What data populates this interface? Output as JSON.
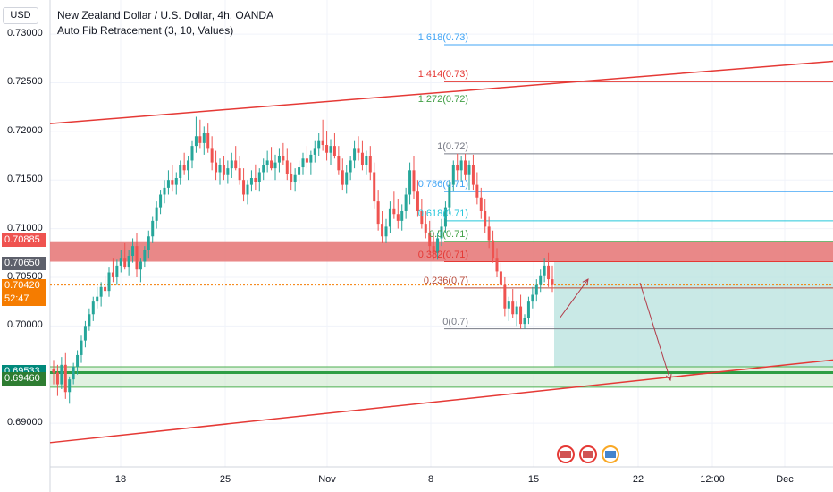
{
  "header": {
    "currency": "USD",
    "title": "New Zealand Dollar / U.S. Dollar, 4h, OANDA",
    "indicator": "Auto Fib Retracement (3, 10, Values)"
  },
  "colors": {
    "up": "#26a69a",
    "down": "#ef5350",
    "trend": "#e53935",
    "supply_zone": "#e57373",
    "demand_zone": "#c8e6c9",
    "target_zone": "#b2dfdb",
    "grid": "#f0f3fa"
  },
  "chart_data": {
    "type": "candlestick",
    "title": "New Zealand Dollar / U.S. Dollar, 4h, OANDA",
    "ylim": [
      0.6855,
      0.7335
    ],
    "y_ticks": [
      "0.73000",
      "0.72500",
      "0.72000",
      "0.71500",
      "0.71000",
      "0.70500",
      "0.70000",
      "0.69000"
    ],
    "x_ticks": [
      "18",
      "25",
      "Nov",
      "8",
      "15",
      "22",
      "12:00",
      "Dec"
    ],
    "price_tags": [
      {
        "label": "0.70885",
        "value": 0.70885,
        "color": "#ef5350"
      },
      {
        "label": "0.70650",
        "value": 0.7065,
        "color": "#5d606b"
      },
      {
        "label": "0.70420",
        "value": 0.7042,
        "color": "#f57c00"
      },
      {
        "label": "52:47",
        "value": 0.7028,
        "color": "#f57c00"
      },
      {
        "label": "0.69533",
        "value": 0.69533,
        "color": "#00897b"
      },
      {
        "label": "0.69460",
        "value": 0.6946,
        "color": "#2e7d32"
      }
    ],
    "current_price": 0.7042,
    "fib_levels": [
      {
        "label": "1.618(0.73)",
        "value": 0.7289,
        "color": "#42a5f5"
      },
      {
        "label": "1.414(0.73)",
        "value": 0.7251,
        "color": "#e53935"
      },
      {
        "label": "1.272(0.72)",
        "value": 0.7226,
        "color": "#43a047"
      },
      {
        "label": "1(0.72)",
        "value": 0.7177,
        "color": "#787b86"
      },
      {
        "label": "0.786(0.71)",
        "value": 0.7138,
        "color": "#42a5f5"
      },
      {
        "label": "0.618(0.71)",
        "value": 0.7108,
        "color": "#26c6da"
      },
      {
        "label": "0.5(0.71)",
        "value": 0.7087,
        "color": "#43a047"
      },
      {
        "label": "0.382(0.71)",
        "value": 0.7066,
        "color": "#e53935"
      },
      {
        "label": "0.236(0.7)",
        "value": 0.7039,
        "color": "#b84a3a"
      },
      {
        "label": "0(0.7)",
        "value": 0.6997,
        "color": "#787b86"
      }
    ],
    "zones": [
      {
        "name": "supply",
        "from": 0.7066,
        "to": 0.7087
      },
      {
        "name": "demand",
        "from": 0.6937,
        "to": 0.6958
      },
      {
        "name": "target",
        "from": 0.6958,
        "to": 0.7066
      }
    ],
    "trendlines": [
      {
        "from": [
          0,
          0.7208
        ],
        "to": [
          1,
          0.7272
        ]
      },
      {
        "from": [
          0,
          0.688
        ],
        "to": [
          1,
          0.6965
        ]
      }
    ],
    "candles_ohlc": [
      [
        0.6956,
        0.6965,
        0.694,
        0.6952
      ],
      [
        0.6952,
        0.696,
        0.6928,
        0.694
      ],
      [
        0.694,
        0.6968,
        0.6935,
        0.696
      ],
      [
        0.696,
        0.6972,
        0.6925,
        0.6932
      ],
      [
        0.6932,
        0.6948,
        0.692,
        0.6945
      ],
      [
        0.6945,
        0.6962,
        0.694,
        0.6958
      ],
      [
        0.6958,
        0.6975,
        0.695,
        0.697
      ],
      [
        0.697,
        0.699,
        0.6962,
        0.6985
      ],
      [
        0.6985,
        0.7005,
        0.6978,
        0.7
      ],
      [
        0.7,
        0.7018,
        0.6995,
        0.7012
      ],
      [
        0.7012,
        0.703,
        0.7005,
        0.7025
      ],
      [
        0.7025,
        0.704,
        0.7018,
        0.703
      ],
      [
        0.703,
        0.7045,
        0.702,
        0.704
      ],
      [
        0.704,
        0.7052,
        0.7032,
        0.7036
      ],
      [
        0.7036,
        0.706,
        0.703,
        0.7055
      ],
      [
        0.7055,
        0.707,
        0.7045,
        0.705
      ],
      [
        0.705,
        0.7068,
        0.7042,
        0.7062
      ],
      [
        0.7062,
        0.7078,
        0.7055,
        0.707
      ],
      [
        0.707,
        0.7085,
        0.7058,
        0.706
      ],
      [
        0.706,
        0.7078,
        0.7052,
        0.7072
      ],
      [
        0.7072,
        0.709,
        0.7065,
        0.7082
      ],
      [
        0.7082,
        0.7095,
        0.705,
        0.7058
      ],
      [
        0.7058,
        0.707,
        0.7045,
        0.7066
      ],
      [
        0.7066,
        0.7082,
        0.706,
        0.7078
      ],
      [
        0.7078,
        0.7098,
        0.707,
        0.7092
      ],
      [
        0.7092,
        0.7112,
        0.7085,
        0.7108
      ],
      [
        0.7108,
        0.7128,
        0.71,
        0.7122
      ],
      [
        0.7122,
        0.714,
        0.7115,
        0.7135
      ],
      [
        0.7135,
        0.715,
        0.7126,
        0.7142
      ],
      [
        0.7142,
        0.716,
        0.7135,
        0.715
      ],
      [
        0.715,
        0.7165,
        0.7138,
        0.7145
      ],
      [
        0.7145,
        0.7158,
        0.7135,
        0.7152
      ],
      [
        0.7152,
        0.717,
        0.7145,
        0.7165
      ],
      [
        0.7165,
        0.7178,
        0.7155,
        0.716
      ],
      [
        0.716,
        0.7175,
        0.715,
        0.717
      ],
      [
        0.717,
        0.719,
        0.7162,
        0.7185
      ],
      [
        0.7185,
        0.7215,
        0.7178,
        0.7195
      ],
      [
        0.7195,
        0.7212,
        0.7182,
        0.7188
      ],
      [
        0.7188,
        0.7205,
        0.7176,
        0.7198
      ],
      [
        0.7198,
        0.7208,
        0.7178,
        0.7182
      ],
      [
        0.7182,
        0.7195,
        0.716,
        0.7168
      ],
      [
        0.7168,
        0.718,
        0.715,
        0.7158
      ],
      [
        0.7158,
        0.7172,
        0.7145,
        0.7165
      ],
      [
        0.7165,
        0.7175,
        0.715,
        0.7155
      ],
      [
        0.7155,
        0.717,
        0.7146,
        0.7162
      ],
      [
        0.7162,
        0.7178,
        0.7152,
        0.717
      ],
      [
        0.717,
        0.7185,
        0.716,
        0.7162
      ],
      [
        0.7162,
        0.7175,
        0.7145,
        0.715
      ],
      [
        0.715,
        0.7162,
        0.7128,
        0.7135
      ],
      [
        0.7135,
        0.715,
        0.7125,
        0.7145
      ],
      [
        0.7145,
        0.716,
        0.7138,
        0.7152
      ],
      [
        0.7152,
        0.7166,
        0.714,
        0.7148
      ],
      [
        0.7148,
        0.7162,
        0.7138,
        0.7158
      ],
      [
        0.7158,
        0.7172,
        0.715,
        0.7165
      ],
      [
        0.7165,
        0.718,
        0.7158,
        0.717
      ],
      [
        0.717,
        0.7184,
        0.716,
        0.7162
      ],
      [
        0.7162,
        0.7176,
        0.715,
        0.7168
      ],
      [
        0.7168,
        0.7182,
        0.7158,
        0.7175
      ],
      [
        0.7175,
        0.7188,
        0.7165,
        0.717
      ],
      [
        0.717,
        0.7182,
        0.715,
        0.7156
      ],
      [
        0.7156,
        0.7168,
        0.714,
        0.7148
      ],
      [
        0.7148,
        0.7162,
        0.7138,
        0.7155
      ],
      [
        0.7155,
        0.717,
        0.7146,
        0.7163
      ],
      [
        0.7163,
        0.7178,
        0.7155,
        0.7172
      ],
      [
        0.7172,
        0.7185,
        0.7162,
        0.7168
      ],
      [
        0.7168,
        0.718,
        0.7155,
        0.7176
      ],
      [
        0.7176,
        0.719,
        0.7168,
        0.7182
      ],
      [
        0.7182,
        0.7198,
        0.7175,
        0.719
      ],
      [
        0.719,
        0.7212,
        0.718,
        0.7186
      ],
      [
        0.7186,
        0.72,
        0.717,
        0.7178
      ],
      [
        0.7178,
        0.7192,
        0.7165,
        0.7185
      ],
      [
        0.7185,
        0.7198,
        0.7172,
        0.7175
      ],
      [
        0.7175,
        0.7185,
        0.7155,
        0.716
      ],
      [
        0.716,
        0.7172,
        0.714,
        0.7145
      ],
      [
        0.7145,
        0.7165,
        0.7136,
        0.7158
      ],
      [
        0.7158,
        0.7175,
        0.715,
        0.717
      ],
      [
        0.717,
        0.719,
        0.7162,
        0.7182
      ],
      [
        0.7182,
        0.7195,
        0.717,
        0.7178
      ],
      [
        0.7178,
        0.719,
        0.716,
        0.7165
      ],
      [
        0.7165,
        0.718,
        0.7155,
        0.7175
      ],
      [
        0.7175,
        0.7185,
        0.715,
        0.7158
      ],
      [
        0.7158,
        0.7168,
        0.712,
        0.7128
      ],
      [
        0.7128,
        0.714,
        0.7098,
        0.7105
      ],
      [
        0.7105,
        0.7118,
        0.7085,
        0.7092
      ],
      [
        0.7092,
        0.711,
        0.7085,
        0.7102
      ],
      [
        0.7102,
        0.7128,
        0.7095,
        0.712
      ],
      [
        0.712,
        0.7138,
        0.711,
        0.7115
      ],
      [
        0.7115,
        0.713,
        0.71,
        0.7108
      ],
      [
        0.7108,
        0.7125,
        0.7098,
        0.7118
      ],
      [
        0.7118,
        0.7142,
        0.711,
        0.7135
      ],
      [
        0.7135,
        0.7168,
        0.7125,
        0.716
      ],
      [
        0.716,
        0.7175,
        0.713,
        0.7138
      ],
      [
        0.7138,
        0.715,
        0.7112,
        0.7118
      ],
      [
        0.7118,
        0.713,
        0.71,
        0.7105
      ],
      [
        0.7105,
        0.7118,
        0.709,
        0.7096
      ],
      [
        0.7096,
        0.7108,
        0.7075,
        0.7082
      ],
      [
        0.7082,
        0.7095,
        0.7068,
        0.7075
      ],
      [
        0.7075,
        0.7095,
        0.7068,
        0.709
      ],
      [
        0.709,
        0.711,
        0.7082,
        0.7102
      ],
      [
        0.7102,
        0.7128,
        0.7095,
        0.7122
      ],
      [
        0.7122,
        0.715,
        0.7115,
        0.7145
      ],
      [
        0.7145,
        0.717,
        0.7138,
        0.7165
      ],
      [
        0.7165,
        0.7177,
        0.715,
        0.716
      ],
      [
        0.716,
        0.7175,
        0.7148,
        0.717
      ],
      [
        0.717,
        0.7177,
        0.715,
        0.7155
      ],
      [
        0.7155,
        0.717,
        0.714,
        0.7165
      ],
      [
        0.7165,
        0.7176,
        0.714,
        0.7145
      ],
      [
        0.7145,
        0.7158,
        0.7125,
        0.7132
      ],
      [
        0.7132,
        0.7142,
        0.711,
        0.7118
      ],
      [
        0.7118,
        0.713,
        0.7095,
        0.7102
      ],
      [
        0.7102,
        0.7112,
        0.708,
        0.7088
      ],
      [
        0.7088,
        0.7098,
        0.7065,
        0.707
      ],
      [
        0.707,
        0.708,
        0.705,
        0.7056
      ],
      [
        0.7056,
        0.7065,
        0.7035,
        0.7042
      ],
      [
        0.7042,
        0.705,
        0.701,
        0.7018
      ],
      [
        0.7018,
        0.703,
        0.7005,
        0.7025
      ],
      [
        0.7025,
        0.7038,
        0.7008,
        0.7012
      ],
      [
        0.7012,
        0.7025,
        0.7,
        0.702
      ],
      [
        0.702,
        0.7032,
        0.6997,
        0.7002
      ],
      [
        0.7002,
        0.7012,
        0.6997,
        0.7008
      ],
      [
        0.7008,
        0.703,
        0.7002,
        0.7025
      ],
      [
        0.7025,
        0.704,
        0.7018,
        0.7032
      ],
      [
        0.7032,
        0.7048,
        0.7025,
        0.7042
      ],
      [
        0.7042,
        0.7058,
        0.7035,
        0.7052
      ],
      [
        0.7052,
        0.707,
        0.7045,
        0.7062
      ],
      [
        0.7062,
        0.7075,
        0.704,
        0.7048
      ],
      [
        0.7048,
        0.7062,
        0.7035,
        0.7042
      ]
    ]
  }
}
